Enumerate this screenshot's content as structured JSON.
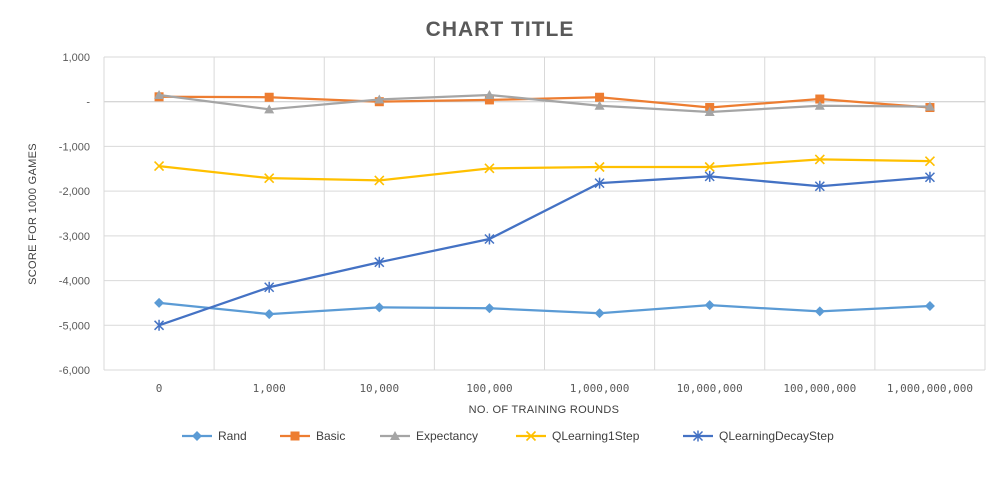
{
  "chart_data": {
    "type": "line",
    "title": "CHART TITLE",
    "xlabel": "NO. OF TRAINING ROUNDS",
    "ylabel": "SCORE FOR 1000 GAMES",
    "categories": [
      "0",
      "1,000",
      "10,000",
      "100,000",
      "1,000,000",
      "10,000,000",
      "100,000,000",
      "1,000,000,000"
    ],
    "ylim": [
      -6000,
      1000
    ],
    "yticks": [
      1000,
      0,
      -1000,
      -2000,
      -3000,
      -4000,
      -5000,
      -6000
    ],
    "ytick_labels": [
      "1,000",
      "-",
      "-1,000",
      "-2,000",
      "-3,000",
      "-4,000",
      "-5,000",
      "-6,000"
    ],
    "grid": true,
    "legend_position": "bottom",
    "series": [
      {
        "name": "Rand",
        "color": "#5B9BD5",
        "marker": "diamond",
        "values": [
          -4500,
          -4750,
          -4600,
          -4620,
          -4730,
          -4550,
          -4690,
          -4570
        ]
      },
      {
        "name": "Basic",
        "color": "#ED7D31",
        "marker": "square",
        "values": [
          110,
          100,
          0,
          40,
          100,
          -130,
          60,
          -130
        ]
      },
      {
        "name": "Expectancy",
        "color": "#A5A5A5",
        "marker": "triangle",
        "values": [
          150,
          -170,
          50,
          150,
          -90,
          -230,
          -90,
          -110
        ]
      },
      {
        "name": "QLearning1Step",
        "color": "#FFC000",
        "marker": "x",
        "values": [
          -1440,
          -1710,
          -1760,
          -1490,
          -1460,
          -1460,
          -1290,
          -1330
        ]
      },
      {
        "name": "QLearningDecayStep",
        "color": "#4472C4",
        "marker": "star",
        "values": [
          -5000,
          -4150,
          -3590,
          -3070,
          -1820,
          -1670,
          -1890,
          -1690
        ]
      }
    ]
  }
}
